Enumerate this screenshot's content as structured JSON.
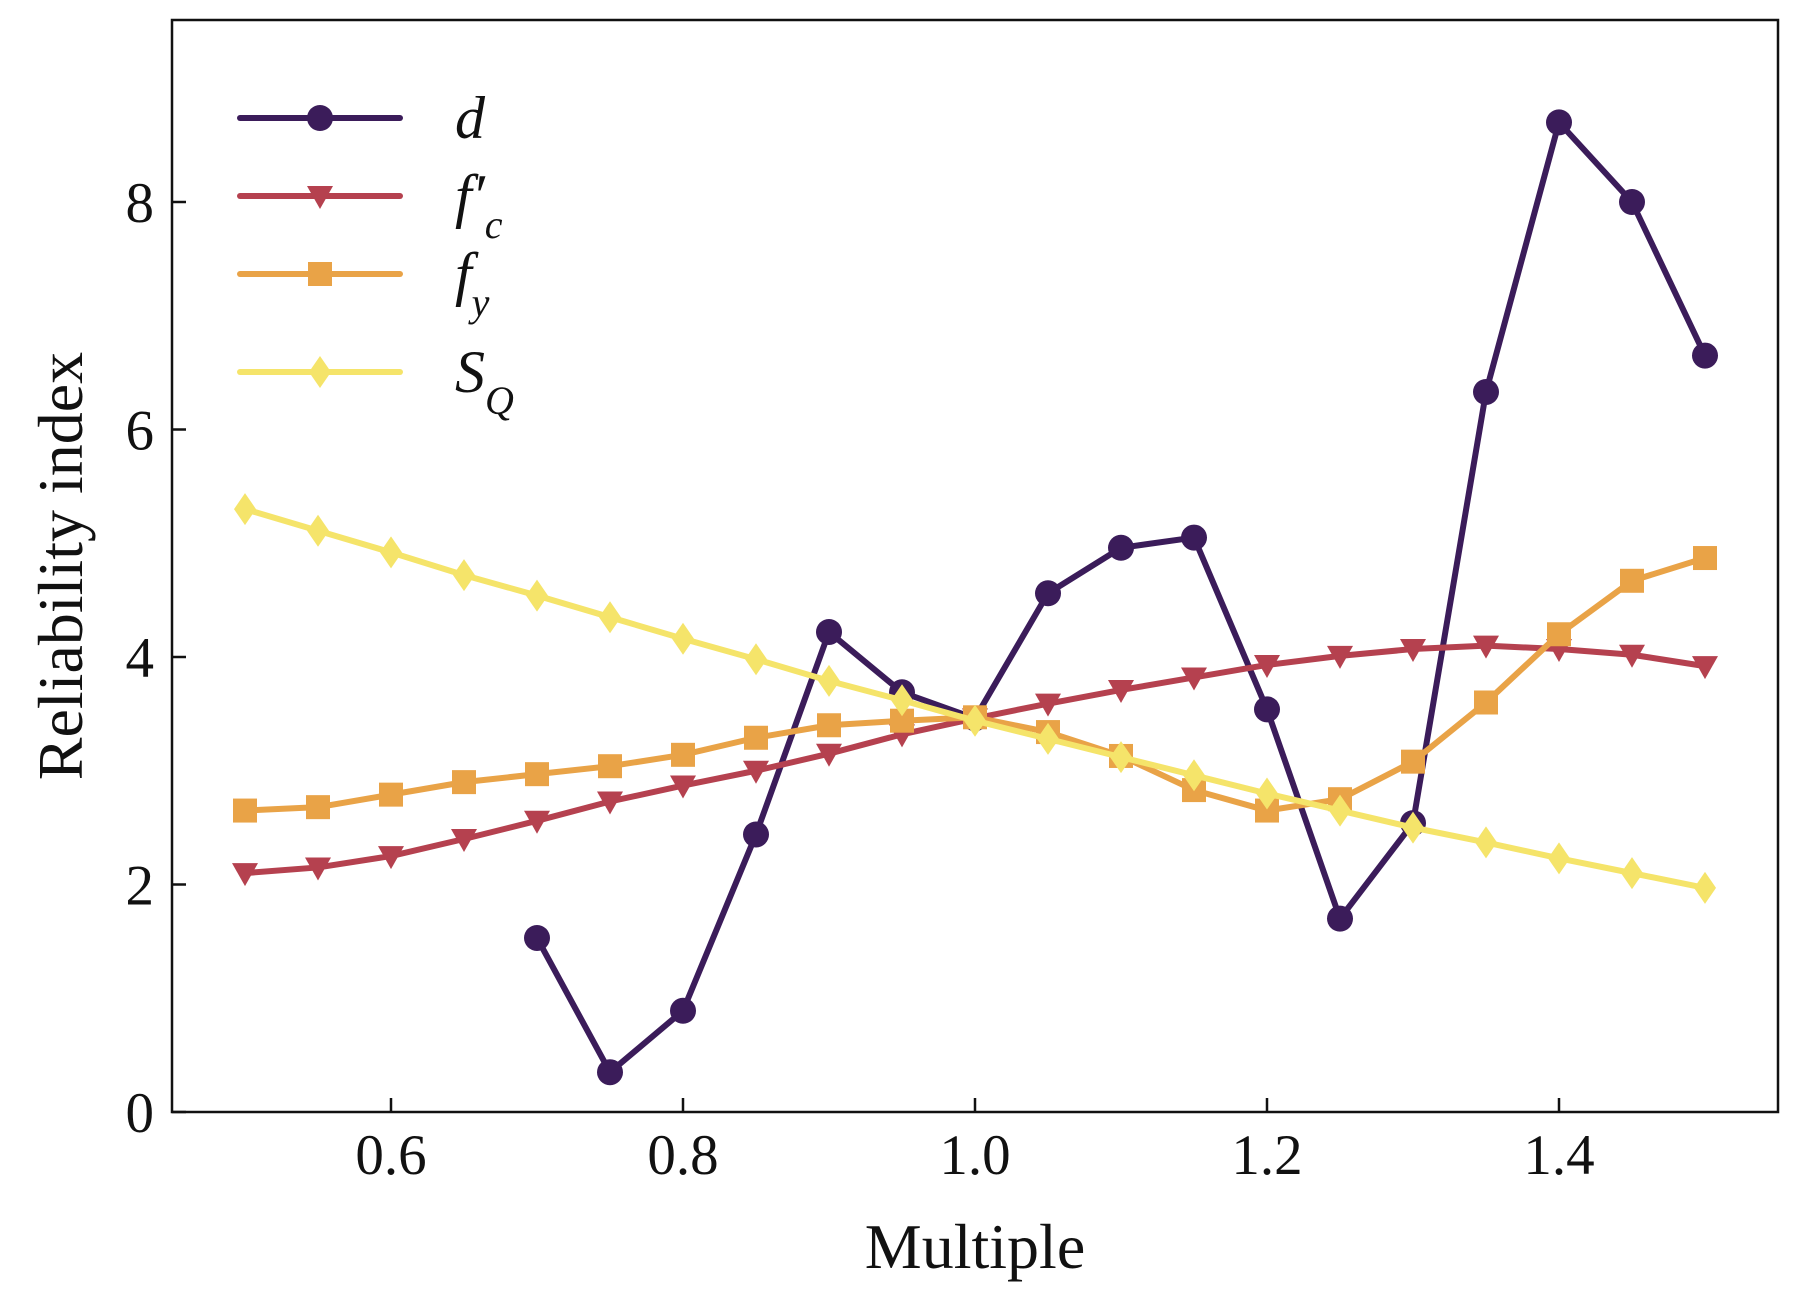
{
  "chart_data": {
    "type": "line",
    "title": "",
    "xlabel": "Multiple",
    "ylabel": "Reliability index",
    "xlim": [
      0.45,
      1.55
    ],
    "ylim": [
      0,
      9.6
    ],
    "xticks": [
      0.6,
      0.8,
      1.0,
      1.2,
      1.4
    ],
    "xtick_labels": [
      "0.6",
      "0.8",
      "1.0",
      "1.2",
      "1.4"
    ],
    "yticks": [
      0,
      2,
      4,
      6,
      8
    ],
    "ytick_labels": [
      "0",
      "2",
      "4",
      "6",
      "8"
    ],
    "grid": false,
    "legend_position": "top-left",
    "series": [
      {
        "name": "d",
        "legend_main": "d",
        "legend_sub": "",
        "color": "#3b1c5a",
        "marker": "circle",
        "x": [
          0.7,
          0.75,
          0.8,
          0.85,
          0.9,
          0.95,
          1.0,
          1.05,
          1.1,
          1.15,
          1.2,
          1.25,
          1.3,
          1.35,
          1.4,
          1.45,
          1.5
        ],
        "values": [
          1.53,
          0.35,
          0.89,
          2.44,
          4.22,
          3.69,
          3.46,
          4.56,
          4.96,
          5.05,
          3.54,
          1.7,
          2.54,
          6.33,
          8.7,
          8.0,
          6.65
        ]
      },
      {
        "name": "f'c",
        "legend_main": "f′",
        "legend_sub": "c",
        "color": "#b5414f",
        "marker": "triangle-down",
        "x": [
          0.5,
          0.55,
          0.6,
          0.65,
          0.7,
          0.75,
          0.8,
          0.85,
          0.9,
          0.95,
          1.0,
          1.05,
          1.1,
          1.15,
          1.2,
          1.25,
          1.3,
          1.35,
          1.4,
          1.45,
          1.5
        ],
        "values": [
          2.1,
          2.15,
          2.25,
          2.4,
          2.56,
          2.73,
          2.87,
          3.0,
          3.15,
          3.32,
          3.46,
          3.59,
          3.71,
          3.82,
          3.93,
          4.01,
          4.07,
          4.1,
          4.07,
          4.02,
          3.92
        ]
      },
      {
        "name": "fy",
        "legend_main": "f",
        "legend_sub": "y",
        "color": "#e9a347",
        "marker": "square",
        "x": [
          0.5,
          0.55,
          0.6,
          0.65,
          0.7,
          0.75,
          0.8,
          0.85,
          0.9,
          0.95,
          1.0,
          1.05,
          1.1,
          1.15,
          1.2,
          1.25,
          1.3,
          1.35,
          1.4,
          1.45,
          1.5
        ],
        "values": [
          2.65,
          2.68,
          2.79,
          2.9,
          2.97,
          3.04,
          3.14,
          3.29,
          3.4,
          3.44,
          3.47,
          3.34,
          3.13,
          2.83,
          2.65,
          2.75,
          3.08,
          3.6,
          4.2,
          4.67,
          4.87
        ]
      },
      {
        "name": "SQ",
        "legend_main": "S",
        "legend_sub": "Q",
        "color": "#f5e46a",
        "marker": "diamond",
        "x": [
          0.5,
          0.55,
          0.6,
          0.65,
          0.7,
          0.75,
          0.8,
          0.85,
          0.9,
          0.95,
          1.0,
          1.05,
          1.1,
          1.15,
          1.2,
          1.25,
          1.3,
          1.35,
          1.4,
          1.45,
          1.5
        ],
        "values": [
          5.3,
          5.11,
          4.92,
          4.72,
          4.54,
          4.35,
          4.16,
          3.98,
          3.79,
          3.62,
          3.44,
          3.28,
          3.12,
          2.96,
          2.8,
          2.65,
          2.5,
          2.37,
          2.23,
          2.1,
          1.97
        ]
      }
    ]
  }
}
